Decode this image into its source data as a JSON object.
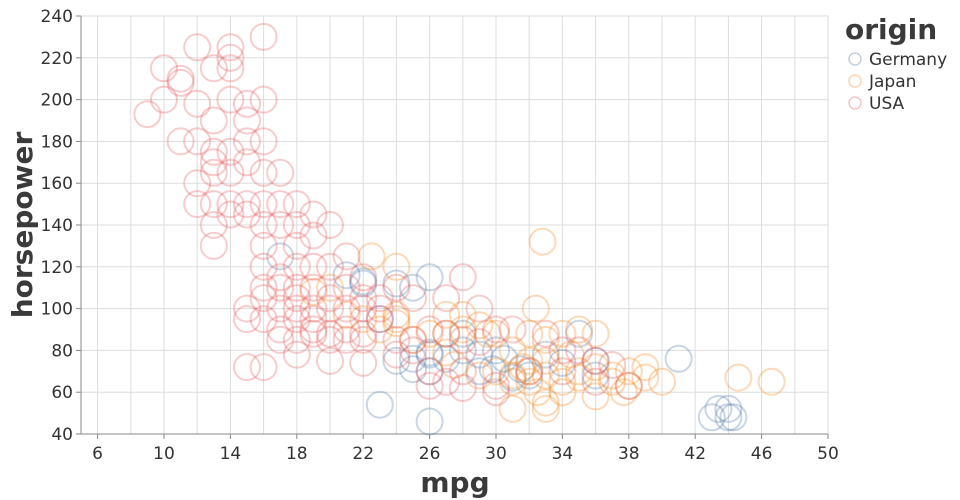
{
  "chart_data": {
    "type": "scatter",
    "xlabel": "mpg",
    "ylabel": "horsepower",
    "xlim": [
      5,
      50
    ],
    "ylim": [
      40,
      240
    ],
    "x_ticks": [
      "6",
      "10",
      "14",
      "18",
      "22",
      "26",
      "30",
      "34",
      "38",
      "42",
      "46",
      "50"
    ],
    "y_ticks": [
      "40",
      "60",
      "80",
      "100",
      "120",
      "140",
      "160",
      "180",
      "200",
      "220",
      "240"
    ],
    "x_tick_values": [
      6,
      10,
      14,
      18,
      22,
      26,
      30,
      34,
      38,
      42,
      46,
      50
    ],
    "y_tick_values": [
      40,
      60,
      80,
      100,
      120,
      140,
      160,
      180,
      200,
      220,
      240
    ],
    "x_grid_step": 2,
    "grid": true,
    "marker": "open-circle",
    "legend": {
      "title": "origin",
      "placement": "right"
    },
    "series": [
      {
        "name": "Germany",
        "color": "#4c78a8",
        "points": [
          [
            26,
            46
          ],
          [
            43,
            48
          ],
          [
            44,
            52
          ],
          [
            44.3,
            48
          ],
          [
            43.4,
            52
          ],
          [
            41,
            76
          ],
          [
            36,
            75
          ],
          [
            35,
            88
          ],
          [
            31,
            67
          ],
          [
            29,
            70
          ],
          [
            29.8,
            71
          ],
          [
            31.5,
            71
          ],
          [
            30.5,
            76
          ],
          [
            26,
            70
          ],
          [
            25,
            71
          ],
          [
            24,
            75
          ],
          [
            26,
            79
          ],
          [
            28,
            88
          ],
          [
            25,
            110
          ],
          [
            24,
            112
          ],
          [
            22,
            112
          ],
          [
            21,
            116
          ],
          [
            17,
            125
          ],
          [
            23,
            54
          ],
          [
            25,
            76
          ],
          [
            27,
            76
          ],
          [
            28,
            80
          ],
          [
            34,
            74
          ],
          [
            36,
            68
          ],
          [
            33,
            78
          ],
          [
            30,
            80
          ],
          [
            26,
            115
          ],
          [
            29,
            78
          ],
          [
            32,
            68
          ],
          [
            44,
            48
          ],
          [
            26,
            78
          ],
          [
            23,
            95
          ],
          [
            22,
            113
          ]
        ]
      },
      {
        "name": "Japan",
        "color": "#f58518",
        "points": [
          [
            32.8,
            132
          ],
          [
            33,
            52
          ],
          [
            33,
            55
          ],
          [
            32.5,
            60
          ],
          [
            34,
            65
          ],
          [
            31,
            65
          ],
          [
            32,
            65
          ],
          [
            35,
            67
          ],
          [
            37,
            68
          ],
          [
            39,
            67
          ],
          [
            40,
            65
          ],
          [
            44.6,
            67
          ],
          [
            46.6,
            65
          ],
          [
            36,
            58
          ],
          [
            37.7,
            60
          ],
          [
            38,
            63
          ],
          [
            32,
            70
          ],
          [
            31.6,
            72
          ],
          [
            33,
            75
          ],
          [
            34,
            88
          ],
          [
            35,
            90
          ],
          [
            36,
            88
          ],
          [
            32.4,
            100
          ],
          [
            24,
            97
          ],
          [
            24,
            93
          ],
          [
            27,
            88
          ],
          [
            28,
            90
          ],
          [
            23,
            90
          ],
          [
            24,
            120
          ],
          [
            22.5,
            125
          ],
          [
            20,
            110
          ],
          [
            19,
            108
          ],
          [
            27,
            97
          ],
          [
            29,
            92
          ],
          [
            30,
            88
          ],
          [
            31,
            80
          ],
          [
            32,
            88
          ],
          [
            33,
            85
          ],
          [
            29,
            68
          ],
          [
            30,
            70
          ],
          [
            35,
            70
          ],
          [
            38,
            70
          ],
          [
            36,
            72
          ],
          [
            31,
            52
          ],
          [
            34,
            60
          ],
          [
            26,
            88
          ],
          [
            25,
            85
          ],
          [
            27,
            79
          ],
          [
            28,
            97
          ],
          [
            22,
            95
          ],
          [
            21,
            97
          ],
          [
            24,
            95
          ],
          [
            33,
            68
          ],
          [
            37,
            65
          ],
          [
            32,
            75
          ],
          [
            39,
            72
          ],
          [
            31,
            68
          ],
          [
            29.5,
            88
          ],
          [
            34.5,
            78
          ],
          [
            27.5,
            73
          ]
        ]
      },
      {
        "name": "USA",
        "color": "#e45756",
        "points": [
          [
            10,
            215
          ],
          [
            9,
            193
          ],
          [
            10,
            200
          ],
          [
            11,
            210
          ],
          [
            11,
            208
          ],
          [
            12,
            225
          ],
          [
            14,
            225
          ],
          [
            14,
            220
          ],
          [
            16,
            230
          ],
          [
            13,
            215
          ],
          [
            14,
            215
          ],
          [
            12,
            198
          ],
          [
            13,
            190
          ],
          [
            11,
            180
          ],
          [
            12,
            180
          ],
          [
            13,
            175
          ],
          [
            13,
            170
          ],
          [
            14,
            165
          ],
          [
            15,
            170
          ],
          [
            16,
            165
          ],
          [
            13,
            165
          ],
          [
            12,
            160
          ],
          [
            14,
            175
          ],
          [
            15,
            180
          ],
          [
            15,
            190
          ],
          [
            15,
            198
          ],
          [
            16,
            180
          ],
          [
            13,
            150
          ],
          [
            14,
            150
          ],
          [
            15,
            150
          ],
          [
            16,
            150
          ],
          [
            14,
            145
          ],
          [
            13,
            140
          ],
          [
            15,
            145
          ],
          [
            16,
            140
          ],
          [
            17,
            140
          ],
          [
            17,
            150
          ],
          [
            18,
            150
          ],
          [
            19,
            145
          ],
          [
            20,
            140
          ],
          [
            18,
            130
          ],
          [
            16,
            130
          ],
          [
            13,
            130
          ],
          [
            17,
            165
          ],
          [
            18,
            140
          ],
          [
            19,
            135
          ],
          [
            20,
            120
          ],
          [
            16,
            120
          ],
          [
            16,
            110
          ],
          [
            17,
            110
          ],
          [
            18,
            105
          ],
          [
            18,
            100
          ],
          [
            19,
            100
          ],
          [
            20,
            100
          ],
          [
            21,
            100
          ],
          [
            22,
            100
          ],
          [
            16,
            105
          ],
          [
            15,
            100
          ],
          [
            17,
            90
          ],
          [
            18,
            95
          ],
          [
            19,
            90
          ],
          [
            20,
            88
          ],
          [
            21,
            90
          ],
          [
            22,
            88
          ],
          [
            23,
            95
          ],
          [
            22,
            105
          ],
          [
            21,
            110
          ],
          [
            20,
            105
          ],
          [
            19,
            110
          ],
          [
            18,
            110
          ],
          [
            17,
            85
          ],
          [
            18,
            85
          ],
          [
            19,
            88
          ],
          [
            20,
            85
          ],
          [
            21,
            85
          ],
          [
            22,
            85
          ],
          [
            24,
            85
          ],
          [
            25,
            85
          ],
          [
            26,
            90
          ],
          [
            27,
            88
          ],
          [
            28,
            85
          ],
          [
            29,
            84
          ],
          [
            30,
            90
          ],
          [
            24,
            110
          ],
          [
            25,
            105
          ],
          [
            23,
            105
          ],
          [
            22,
            115
          ],
          [
            19,
            120
          ],
          [
            17,
            115
          ],
          [
            15,
            72
          ],
          [
            16,
            72
          ],
          [
            18,
            78
          ],
          [
            20,
            75
          ],
          [
            22,
            74
          ],
          [
            24,
            78
          ],
          [
            26,
            70
          ],
          [
            27,
            65
          ],
          [
            28,
            62
          ],
          [
            30,
            63
          ],
          [
            32,
            70
          ],
          [
            34,
            70
          ],
          [
            36,
            65
          ],
          [
            38,
            63
          ],
          [
            26,
            63
          ],
          [
            25,
            80
          ],
          [
            28,
            115
          ],
          [
            27,
            105
          ],
          [
            29,
            100
          ],
          [
            31,
            90
          ],
          [
            33,
            88
          ],
          [
            34,
            80
          ],
          [
            36,
            75
          ],
          [
            37,
            73
          ],
          [
            35,
            80
          ],
          [
            28,
            70
          ],
          [
            30,
            60
          ],
          [
            16,
            200
          ],
          [
            14,
            200
          ],
          [
            12,
            150
          ],
          [
            18,
            120
          ],
          [
            21,
            125
          ],
          [
            23,
            100
          ],
          [
            15,
            95
          ],
          [
            16,
            95
          ],
          [
            19,
            95
          ],
          [
            17,
            100
          ]
        ]
      }
    ]
  }
}
